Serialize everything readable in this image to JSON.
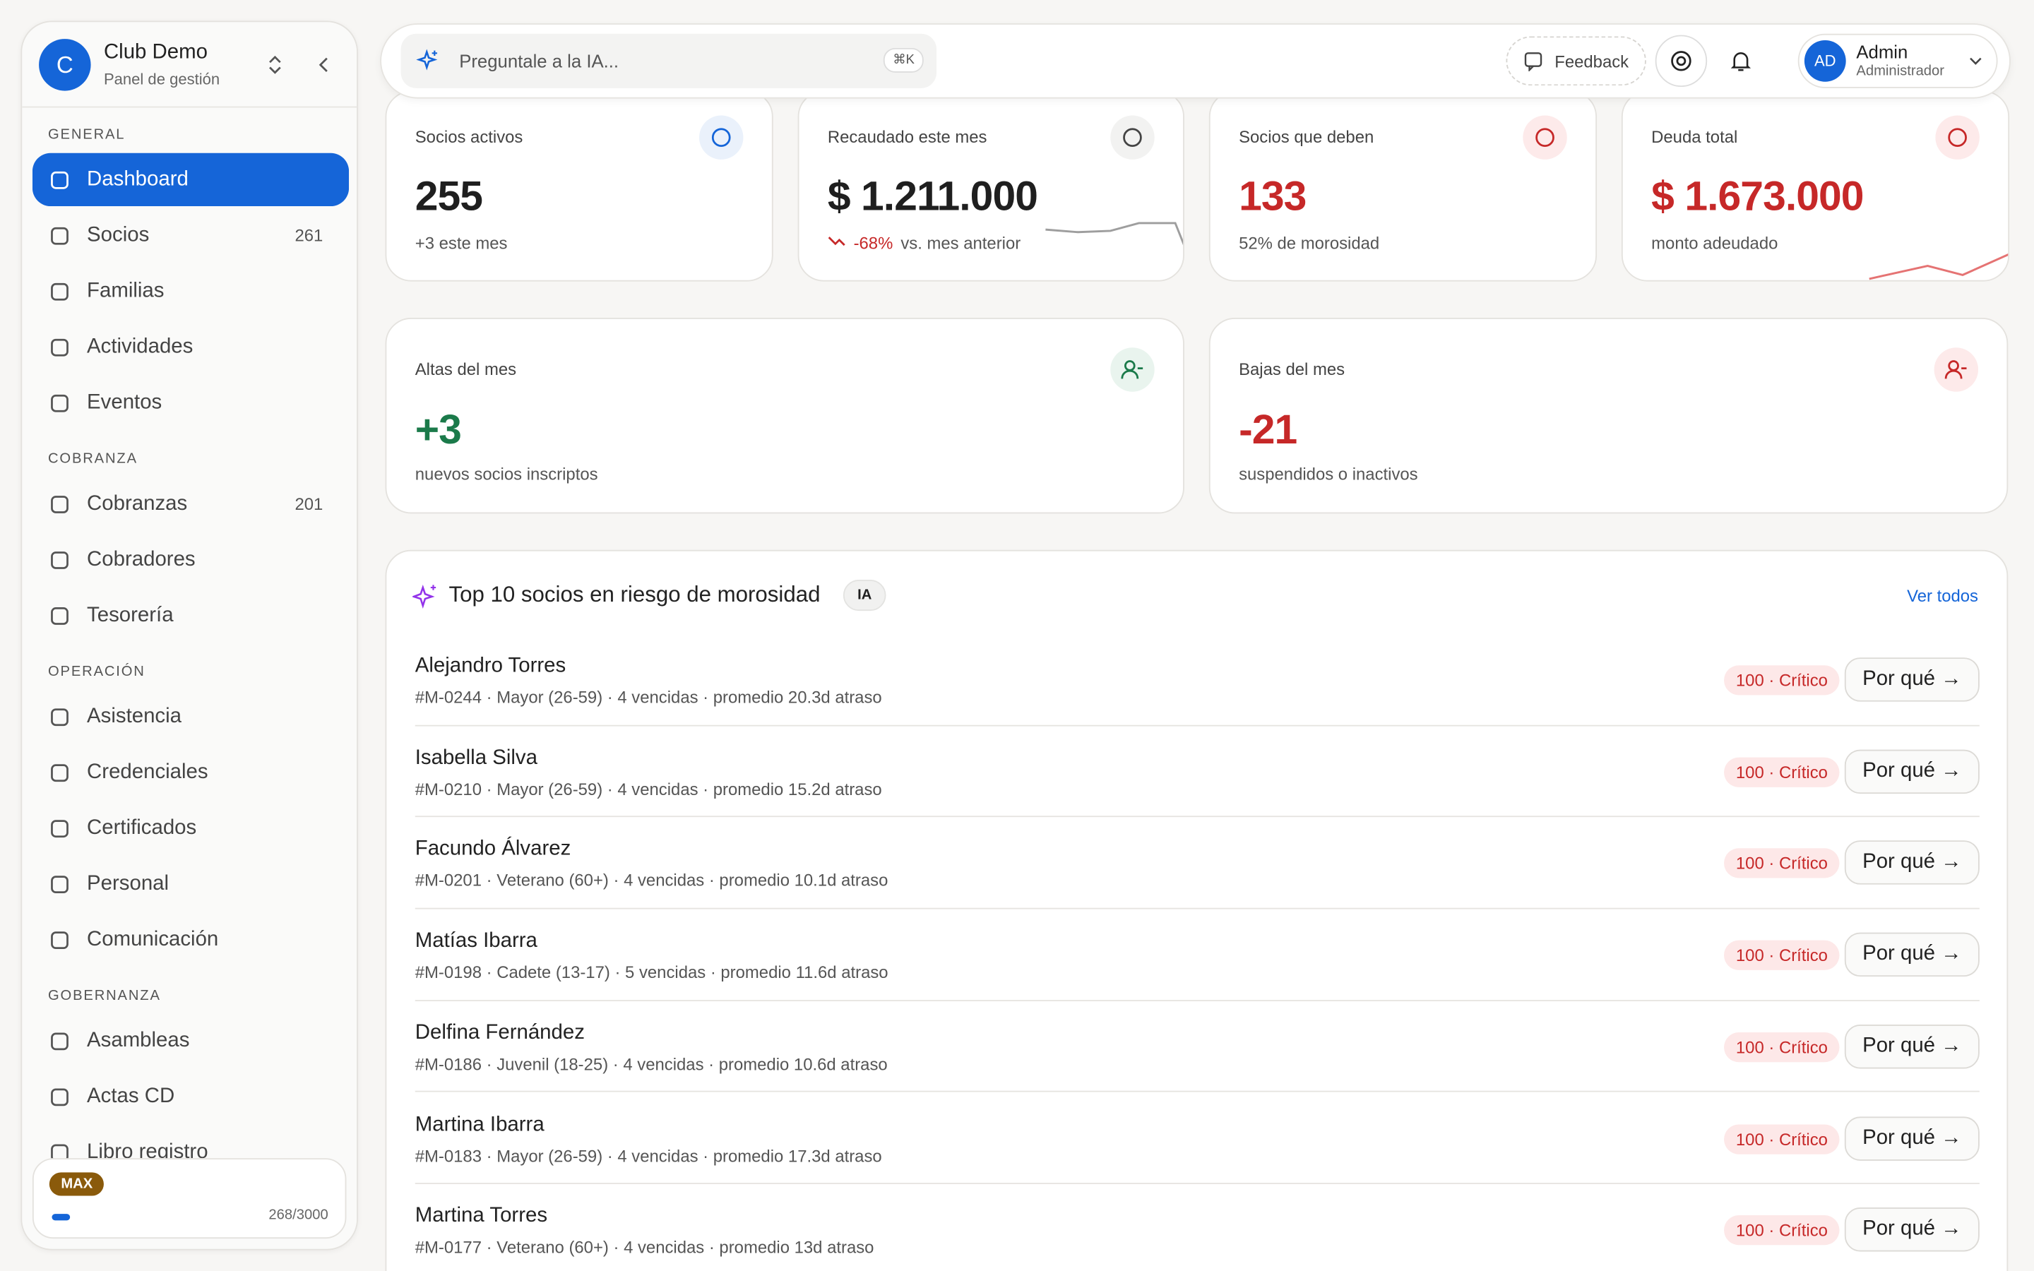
{
  "sidebar": {
    "club": {
      "initial": "C",
      "name": "Club Demo",
      "subtitle": "Panel de gestión"
    },
    "sections": [
      {
        "title": "GENERAL",
        "items": [
          {
            "label": "Dashboard"
          },
          {
            "label": "Socios",
            "badge": "261"
          },
          {
            "label": "Familias"
          },
          {
            "label": "Actividades"
          },
          {
            "label": "Eventos"
          }
        ]
      },
      {
        "title": "COBRANZA",
        "items": [
          {
            "label": "Cobranzas",
            "badge": "201"
          },
          {
            "label": "Cobradores"
          },
          {
            "label": "Tesorería"
          }
        ]
      },
      {
        "title": "OPERACIÓN",
        "items": [
          {
            "label": "Asistencia"
          },
          {
            "label": "Credenciales"
          },
          {
            "label": "Certificados"
          },
          {
            "label": "Personal"
          },
          {
            "label": "Comunicación"
          }
        ]
      },
      {
        "title": "GOBERNANZA",
        "items": [
          {
            "label": "Asambleas"
          },
          {
            "label": "Actas CD"
          },
          {
            "label": "Libro registro"
          }
        ]
      }
    ],
    "plan": {
      "badge": "MAX",
      "usage": "268/3000"
    }
  },
  "topbar": {
    "search": "Preguntale a la IA...",
    "shortcut": "⌘K",
    "feedback": "Feedback",
    "user": {
      "initials": "AD",
      "name": "Admin",
      "role": "Administrador"
    }
  },
  "kpis": [
    {
      "label": "Socios activos",
      "value": "255",
      "note": "+3 este mes"
    },
    {
      "label": "Recaudado este mes",
      "value": "$ 1.211.000",
      "delta": "-68%",
      "note": "vs. mes anterior"
    },
    {
      "label": "Socios que deben",
      "value": "133",
      "note": "52% de morosidad"
    },
    {
      "label": "Deuda total",
      "value": "$ 1.673.000",
      "note": "monto adeudado"
    }
  ],
  "monthly": [
    {
      "label": "Altas del mes",
      "value": "+3",
      "note": "nuevos socios inscriptos"
    },
    {
      "label": "Bajas del mes",
      "value": "-21",
      "note": "suspendidos o inactivos"
    }
  ],
  "risk": {
    "title": "Top 10 socios en riesgo de morosidad",
    "tag": "IA",
    "link": "Ver todos",
    "button": "Por qué →",
    "rows": [
      {
        "name": "Alejandro Torres",
        "details": "#M-0244 · Mayor (26-59) · 4 vencidas · promedio 20.3d atraso",
        "score": "100 · Crítico"
      },
      {
        "name": "Isabella Silva",
        "details": "#M-0210 · Mayor (26-59) · 4 vencidas · promedio 15.2d atraso",
        "score": "100 · Crítico"
      },
      {
        "name": "Facundo Álvarez",
        "details": "#M-0201 · Veterano (60+) · 4 vencidas · promedio 10.1d atraso",
        "score": "100 · Crítico"
      },
      {
        "name": "Matías Ibarra",
        "details": "#M-0198 · Cadete (13-17) · 5 vencidas · promedio 11.6d atraso",
        "score": "100 · Crítico"
      },
      {
        "name": "Delfina Fernández",
        "details": "#M-0186 · Juvenil (18-25) · 4 vencidas · promedio 10.6d atraso",
        "score": "100 · Crítico"
      },
      {
        "name": "Martina Ibarra",
        "details": "#M-0183 · Mayor (26-59) · 4 vencidas · promedio 17.3d atraso",
        "score": "100 · Crítico"
      },
      {
        "name": "Martina Torres",
        "details": "#M-0177 · Veterano (60+) · 4 vencidas · promedio 13d atraso",
        "score": "100 · Crítico"
      }
    ]
  }
}
